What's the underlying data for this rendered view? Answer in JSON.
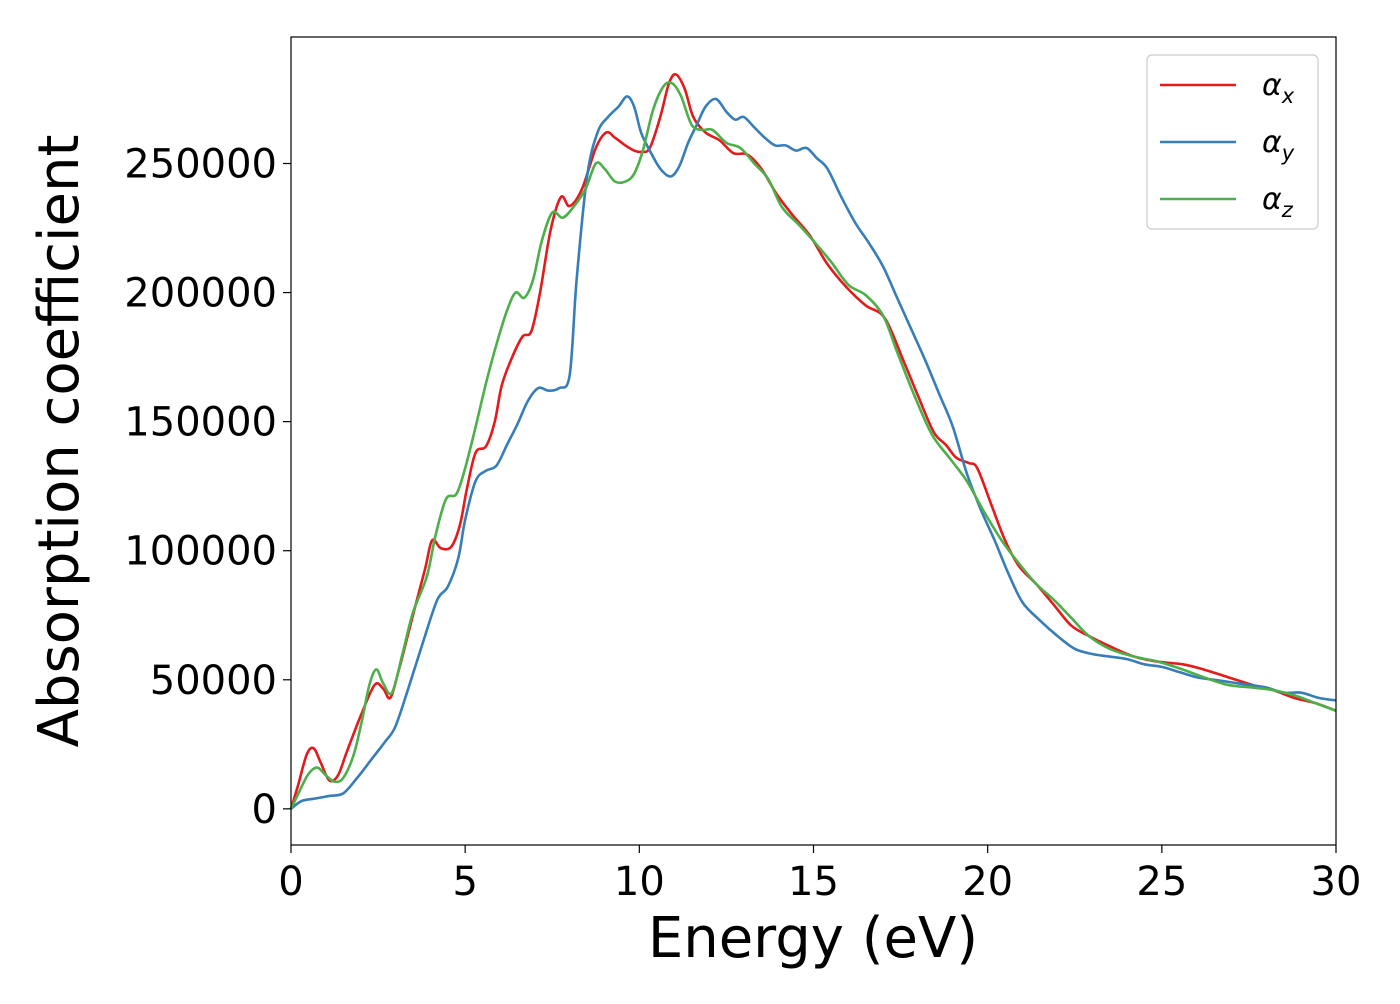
{
  "chart_data": {
    "type": "line",
    "title": "",
    "xlabel": "Energy (eV)",
    "ylabel": "Absorption coefficient",
    "xlim": [
      0,
      30
    ],
    "ylim": [
      -14000,
      299000
    ],
    "xticks": [
      0,
      5,
      10,
      15,
      20,
      25,
      30
    ],
    "xtick_labels": [
      "0",
      "5",
      "10",
      "15",
      "20",
      "25",
      "30"
    ],
    "yticks": [
      0,
      50000,
      100000,
      150000,
      200000,
      250000
    ],
    "ytick_labels": [
      "0",
      "50000",
      "100000",
      "150000",
      "200000",
      "250000"
    ],
    "grid": false,
    "legend_position": "top-right",
    "series": [
      {
        "name": "α",
        "subscript": "x",
        "color": "#e41a1c",
        "x": [
          0,
          0.2,
          0.45,
          0.65,
          0.85,
          1.1,
          1.35,
          1.6,
          2.0,
          2.4,
          2.65,
          2.85,
          3.1,
          3.5,
          3.85,
          4.05,
          4.3,
          4.6,
          4.85,
          5.05,
          5.3,
          5.6,
          5.85,
          6.05,
          6.35,
          6.65,
          6.9,
          7.15,
          7.45,
          7.75,
          8.0,
          8.35,
          8.75,
          9.05,
          9.3,
          9.6,
          9.85,
          10.05,
          10.3,
          10.6,
          10.85,
          11.05,
          11.3,
          11.55,
          11.9,
          12.3,
          12.7,
          13.1,
          13.5,
          13.95,
          14.4,
          14.9,
          15.4,
          15.95,
          16.5,
          17.05,
          17.6,
          18.0,
          18.45,
          18.8,
          19.1,
          19.45,
          19.7,
          20.1,
          20.5,
          20.9,
          21.4,
          21.9,
          22.4,
          22.9,
          23.5,
          24.2,
          24.9,
          25.6,
          26.2,
          26.9,
          27.6,
          28.2,
          28.8,
          29.4,
          30
        ],
        "y": [
          0,
          9000,
          21000,
          23500,
          18000,
          11000,
          13000,
          22000,
          36000,
          48000,
          46500,
          43000,
          54000,
          75000,
          93000,
          104000,
          101000,
          101500,
          110000,
          124000,
          138000,
          140500,
          150000,
          164000,
          175000,
          183000,
          185000,
          200000,
          224000,
          237000,
          233500,
          240000,
          256000,
          262000,
          260000,
          257000,
          255000,
          254500,
          256000,
          268000,
          281000,
          284500,
          279000,
          268000,
          262000,
          259000,
          254000,
          253500,
          248000,
          238000,
          230000,
          222000,
          211000,
          202000,
          195000,
          190000,
          173000,
          160000,
          146000,
          141000,
          136000,
          134000,
          132000,
          118000,
          104000,
          94000,
          87000,
          79000,
          71000,
          67000,
          63000,
          59000,
          57000,
          56000,
          54000,
          51000,
          48000,
          46000,
          43000,
          41000,
          38000
        ]
      },
      {
        "name": "α",
        "subscript": "y",
        "color": "#377eb8",
        "x": [
          0,
          0.3,
          0.7,
          1.1,
          1.5,
          1.9,
          2.3,
          2.7,
          3.0,
          3.4,
          3.8,
          4.2,
          4.5,
          4.8,
          5.0,
          5.3,
          5.6,
          5.9,
          6.2,
          6.5,
          6.8,
          7.1,
          7.4,
          7.7,
          8.0,
          8.2,
          8.5,
          8.8,
          9.1,
          9.4,
          9.65,
          9.85,
          10.05,
          10.3,
          10.6,
          10.9,
          11.15,
          11.4,
          11.65,
          11.9,
          12.2,
          12.5,
          12.75,
          13.0,
          13.3,
          13.6,
          13.9,
          14.2,
          14.5,
          14.8,
          15.1,
          15.4,
          15.8,
          16.2,
          16.6,
          17.0,
          17.4,
          17.8,
          18.2,
          18.6,
          19.0,
          19.4,
          19.8,
          20.2,
          20.6,
          21.0,
          21.5,
          22.0,
          22.5,
          23.0,
          23.5,
          24.0,
          24.5,
          25.0,
          25.5,
          26.0,
          26.5,
          27.0,
          27.5,
          28.0,
          28.5,
          29.0,
          29.5,
          30
        ],
        "y": [
          0,
          3000,
          4000,
          5000,
          6000,
          12000,
          19000,
          26000,
          32000,
          48000,
          65000,
          81000,
          86000,
          97000,
          112000,
          127000,
          131000,
          133000,
          141000,
          149000,
          158000,
          163000,
          162000,
          163000,
          168000,
          205000,
          245000,
          262000,
          268000,
          272000,
          276000,
          272000,
          262000,
          255000,
          248000,
          245000,
          249000,
          258000,
          265000,
          272000,
          275000,
          270000,
          267000,
          268000,
          264000,
          260000,
          257000,
          257000,
          255000,
          256000,
          252000,
          248000,
          237000,
          227000,
          219000,
          210000,
          198000,
          186000,
          174000,
          161000,
          148000,
          130000,
          116000,
          104000,
          91000,
          80000,
          73000,
          67000,
          62000,
          60000,
          59000,
          58000,
          56000,
          55000,
          53000,
          51000,
          50000,
          49000,
          48000,
          47000,
          45000,
          45000,
          43000,
          42000
        ]
      },
      {
        "name": "α",
        "subscript": "z",
        "color": "#4daf4a",
        "x": [
          0,
          0.25,
          0.5,
          0.75,
          1.0,
          1.25,
          1.5,
          1.8,
          2.05,
          2.25,
          2.45,
          2.65,
          2.9,
          3.2,
          3.5,
          3.9,
          4.15,
          4.45,
          4.75,
          5.0,
          5.3,
          5.6,
          5.9,
          6.2,
          6.45,
          6.7,
          6.95,
          7.2,
          7.5,
          7.8,
          8.1,
          8.45,
          8.75,
          9.0,
          9.3,
          9.6,
          9.85,
          10.1,
          10.4,
          10.7,
          10.95,
          11.2,
          11.5,
          11.8,
          12.1,
          12.5,
          12.9,
          13.3,
          13.7,
          14.1,
          14.6,
          15.0,
          15.5,
          16.0,
          16.5,
          17.0,
          17.4,
          17.9,
          18.4,
          18.9,
          19.4,
          19.9,
          20.4,
          20.9,
          21.4,
          21.9,
          22.4,
          22.9,
          23.5,
          24.2,
          24.9,
          25.6,
          26.2,
          26.9,
          27.6,
          28.2,
          28.8,
          29.4,
          30
        ],
        "y": [
          0,
          7000,
          13500,
          16000,
          13000,
          10500,
          12000,
          21000,
          35000,
          48000,
          54000,
          48500,
          45000,
          60000,
          76000,
          90000,
          106000,
          120000,
          122000,
          132000,
          148000,
          165000,
          180000,
          193000,
          200000,
          198000,
          205000,
          220000,
          231000,
          229000,
          233000,
          240000,
          250000,
          248000,
          243000,
          243000,
          246000,
          255000,
          271000,
          280000,
          281000,
          276000,
          265000,
          263000,
          263000,
          258000,
          256000,
          250000,
          244000,
          233000,
          226000,
          220000,
          212000,
          203000,
          199000,
          191000,
          177000,
          160000,
          145000,
          136000,
          127000,
          115000,
          104000,
          95000,
          87000,
          81000,
          74000,
          67000,
          62000,
          59000,
          57000,
          54000,
          51000,
          48000,
          47000,
          46000,
          44000,
          41000,
          38000
        ]
      }
    ]
  }
}
